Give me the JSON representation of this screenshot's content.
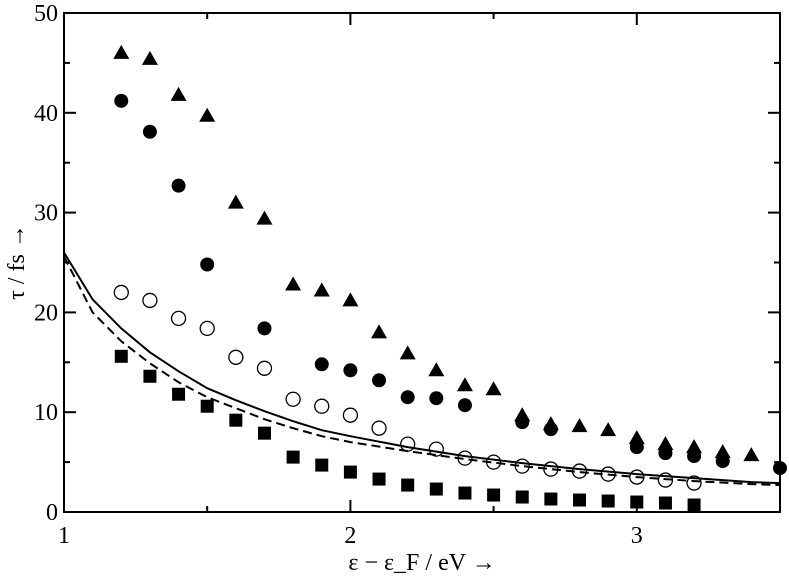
{
  "chart_data": {
    "type": "scatter",
    "title": "",
    "xlabel": "ε − ε_F / eV →",
    "ylabel": "τ / fs →",
    "xlim": [
      1,
      3.5
    ],
    "ylim": [
      0,
      50
    ],
    "x_ticks": [
      1,
      2,
      3
    ],
    "y_ticks": [
      0,
      10,
      20,
      30,
      40,
      50
    ],
    "x_tick_labels": [
      "1",
      "2",
      "3"
    ],
    "y_tick_labels": [
      "0",
      "10",
      "20",
      "30",
      "40",
      "50"
    ],
    "grid": false,
    "legend": "none",
    "series": [
      {
        "marker": "triangle-filled",
        "x": [
          1.2,
          1.3,
          1.4,
          1.5,
          1.6,
          1.7,
          1.8,
          1.9,
          2.0,
          2.1,
          2.2,
          2.3,
          2.4,
          2.5,
          2.6,
          2.7,
          2.8,
          2.9,
          3.0,
          3.1,
          3.2,
          3.3,
          3.4
        ],
        "y": [
          46.0,
          45.4,
          41.8,
          39.7,
          31.0,
          29.4,
          22.8,
          22.2,
          21.2,
          18.0,
          15.9,
          14.2,
          12.7,
          12.3,
          9.7,
          8.8,
          8.6,
          8.2,
          7.4,
          6.8,
          6.5,
          6.0,
          5.7
        ]
      },
      {
        "marker": "circle-filled",
        "x": [
          1.2,
          1.3,
          1.4,
          1.5,
          1.7,
          1.9,
          2.0,
          2.1,
          2.2,
          2.3,
          2.4,
          2.6,
          2.7,
          3.0,
          3.1,
          3.2,
          3.3,
          3.5
        ],
        "y": [
          41.2,
          38.1,
          32.7,
          24.8,
          18.4,
          14.8,
          14.2,
          13.2,
          11.5,
          11.4,
          10.7,
          9.0,
          8.3,
          6.5,
          5.9,
          5.6,
          5.1,
          4.4
        ]
      },
      {
        "marker": "circle-open",
        "x": [
          1.2,
          1.3,
          1.4,
          1.5,
          1.6,
          1.7,
          1.8,
          1.9,
          2.0,
          2.1,
          2.2,
          2.3,
          2.4,
          2.5,
          2.6,
          2.7,
          2.8,
          2.9,
          3.0,
          3.1,
          3.2
        ],
        "y": [
          22.0,
          21.2,
          19.4,
          18.4,
          15.5,
          14.4,
          11.3,
          10.6,
          9.7,
          8.4,
          6.8,
          6.3,
          5.4,
          5.0,
          4.6,
          4.3,
          4.1,
          3.8,
          3.5,
          3.2,
          2.9
        ]
      },
      {
        "marker": "square-filled",
        "x": [
          1.2,
          1.3,
          1.4,
          1.5,
          1.6,
          1.7,
          1.8,
          1.9,
          2.0,
          2.1,
          2.2,
          2.3,
          2.4,
          2.5,
          2.6,
          2.7,
          2.8,
          2.9,
          3.0,
          3.1,
          3.2
        ],
        "y": [
          15.6,
          13.6,
          11.8,
          10.6,
          9.2,
          7.9,
          5.5,
          4.7,
          4.0,
          3.3,
          2.7,
          2.3,
          1.9,
          1.7,
          1.5,
          1.3,
          1.2,
          1.1,
          1.0,
          0.9,
          0.7
        ]
      },
      {
        "marker": "line-solid",
        "x": [
          1.0,
          1.1,
          1.2,
          1.3,
          1.4,
          1.5,
          1.6,
          1.7,
          1.8,
          1.9,
          2.0,
          2.2,
          2.4,
          2.6,
          2.8,
          3.0,
          3.2,
          3.4,
          3.5
        ],
        "y": [
          26.0,
          21.3,
          18.4,
          16.0,
          14.1,
          12.4,
          11.2,
          10.1,
          9.1,
          8.2,
          7.6,
          6.5,
          5.6,
          4.9,
          4.3,
          3.8,
          3.4,
          3.0,
          2.9
        ]
      },
      {
        "marker": "line-dashed",
        "x": [
          1.0,
          1.1,
          1.2,
          1.3,
          1.4,
          1.5,
          1.6,
          1.7,
          1.8,
          1.9,
          2.0,
          2.2,
          2.4,
          2.6,
          2.8,
          3.0,
          3.2,
          3.4,
          3.5
        ],
        "y": [
          25.6,
          20.0,
          17.1,
          14.9,
          13.0,
          11.5,
          10.4,
          9.3,
          8.4,
          7.6,
          7.0,
          6.1,
          5.3,
          4.6,
          4.0,
          3.5,
          3.1,
          2.8,
          2.7
        ]
      }
    ]
  }
}
